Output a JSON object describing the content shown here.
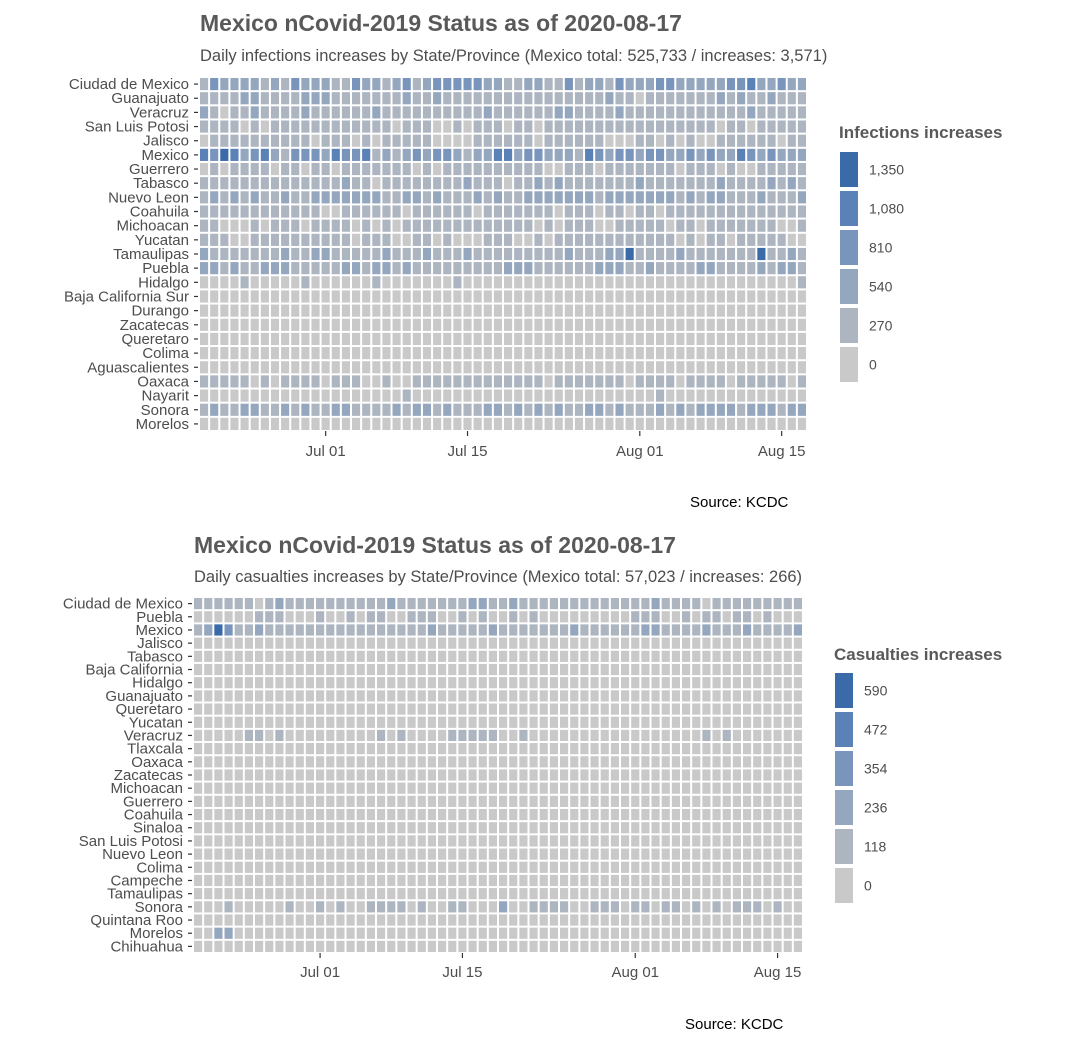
{
  "colors": {
    "scale": [
      "#c9c9c9",
      "#adb5c1",
      "#94a7bf",
      "#7a95bc",
      "#5a82b7",
      "#3a6ba8"
    ],
    "grid_line": "#ffffff",
    "text": "#4d4d4d"
  },
  "source_text": "Source: KCDC",
  "chart_data": [
    {
      "type": "heatmap",
      "title": "Mexico nCovid-2019 Status as of 2020-08-17",
      "subtitle": "Daily infections increases by State/Province (Mexico total: 525,733 / increases: 3,571)",
      "legend_title": "Infections increases",
      "legend_breaks": [
        "1,350",
        "1,080",
        "810",
        "540",
        "270",
        "0"
      ],
      "max_value": 1450,
      "x_start": "2020-06-19",
      "x_end": "2020-08-17",
      "x_ticks": [
        {
          "label": "Jul 01",
          "date": "2020-07-01"
        },
        {
          "label": "Jul 15",
          "date": "2020-07-15"
        },
        {
          "label": "Aug 01",
          "date": "2020-08-01"
        },
        {
          "label": "Aug 15",
          "date": "2020-08-15"
        }
      ],
      "rows": [
        {
          "name": "Ciudad de Mexico",
          "base": 700
        },
        {
          "name": "Guanajuato",
          "base": 380
        },
        {
          "name": "Veracruz",
          "base": 380
        },
        {
          "name": "San Luis Potosi",
          "base": 330
        },
        {
          "name": "Jalisco",
          "base": 260
        },
        {
          "name": "Mexico",
          "base": 900
        },
        {
          "name": "Guerrero",
          "base": 300
        },
        {
          "name": "Tabasco",
          "base": 380
        },
        {
          "name": "Nuevo Leon",
          "base": 540
        },
        {
          "name": "Coahuila",
          "base": 330
        },
        {
          "name": "Michoacan",
          "base": 300
        },
        {
          "name": "Yucatan",
          "base": 260
        },
        {
          "name": "Tamaulipas",
          "base": 430
        },
        {
          "name": "Puebla",
          "base": 520
        },
        {
          "name": "Hidalgo",
          "base": 130
        },
        {
          "name": "Baja California Sur",
          "base": 110
        },
        {
          "name": "Durango",
          "base": 110
        },
        {
          "name": "Zacatecas",
          "base": 110
        },
        {
          "name": "Queretaro",
          "base": 110
        },
        {
          "name": "Colima",
          "base": 60
        },
        {
          "name": "Aguascalientes",
          "base": 110
        },
        {
          "name": "Oaxaca",
          "base": 250
        },
        {
          "name": "Nayarit",
          "base": 120
        },
        {
          "name": "Sonora",
          "base": 520
        },
        {
          "name": "Morelos",
          "base": 90
        }
      ],
      "peaks": [
        {
          "row": "Tamaulipas",
          "date": "2020-07-31",
          "value": 1400
        },
        {
          "row": "Tamaulipas",
          "date": "2020-08-13",
          "value": 1350
        },
        {
          "row": "Mexico",
          "date": "2020-06-21",
          "value": 1350
        },
        {
          "row": "Ciudad de Mexico",
          "date": "2020-08-12",
          "value": 1300
        }
      ]
    },
    {
      "type": "heatmap",
      "title": "Mexico nCovid-2019 Status as of 2020-08-17",
      "subtitle": "Daily casualties increases by State/Province (Mexico total: 57,023 / increases: 266)",
      "legend_title": "Casualties increases",
      "legend_breaks": [
        "590",
        "472",
        "354",
        "236",
        "118",
        "0"
      ],
      "max_value": 620,
      "x_start": "2020-06-19",
      "x_end": "2020-08-17",
      "x_ticks": [
        {
          "label": "Jul 01",
          "date": "2020-07-01"
        },
        {
          "label": "Jul 15",
          "date": "2020-07-15"
        },
        {
          "label": "Aug 01",
          "date": "2020-08-01"
        },
        {
          "label": "Aug 15",
          "date": "2020-08-15"
        }
      ],
      "rows": [
        {
          "name": "Ciudad de Mexico",
          "base": 160
        },
        {
          "name": "Puebla",
          "base": 60
        },
        {
          "name": "Mexico",
          "base": 170
        },
        {
          "name": "Jalisco",
          "base": 40
        },
        {
          "name": "Tabasco",
          "base": 40
        },
        {
          "name": "Baja California",
          "base": 40
        },
        {
          "name": "Hidalgo",
          "base": 30
        },
        {
          "name": "Guanajuato",
          "base": 50
        },
        {
          "name": "Queretaro",
          "base": 20
        },
        {
          "name": "Yucatan",
          "base": 30
        },
        {
          "name": "Veracruz",
          "base": 60
        },
        {
          "name": "Tlaxcala",
          "base": 20
        },
        {
          "name": "Oaxaca",
          "base": 30
        },
        {
          "name": "Zacatecas",
          "base": 20
        },
        {
          "name": "Michoacan",
          "base": 30
        },
        {
          "name": "Guerrero",
          "base": 40
        },
        {
          "name": "Coahuila",
          "base": 30
        },
        {
          "name": "Sinaloa",
          "base": 40
        },
        {
          "name": "San Luis Potosi",
          "base": 30
        },
        {
          "name": "Nuevo Leon",
          "base": 50
        },
        {
          "name": "Colima",
          "base": 20
        },
        {
          "name": "Campeche",
          "base": 20
        },
        {
          "name": "Tamaulipas",
          "base": 40
        },
        {
          "name": "Sonora",
          "base": 70
        },
        {
          "name": "Quintana Roo",
          "base": 20
        },
        {
          "name": "Morelos",
          "base": 20
        },
        {
          "name": "Chihuahua",
          "base": 20
        }
      ],
      "peaks": [
        {
          "row": "Mexico",
          "date": "2020-06-21",
          "value": 590
        },
        {
          "row": "Mexico",
          "date": "2020-06-22",
          "value": 420
        },
        {
          "row": "Sonora",
          "date": "2020-07-19",
          "value": 250
        },
        {
          "row": "Morelos",
          "date": "2020-06-21",
          "value": 240
        },
        {
          "row": "Morelos",
          "date": "2020-06-22",
          "value": 200
        }
      ]
    }
  ]
}
